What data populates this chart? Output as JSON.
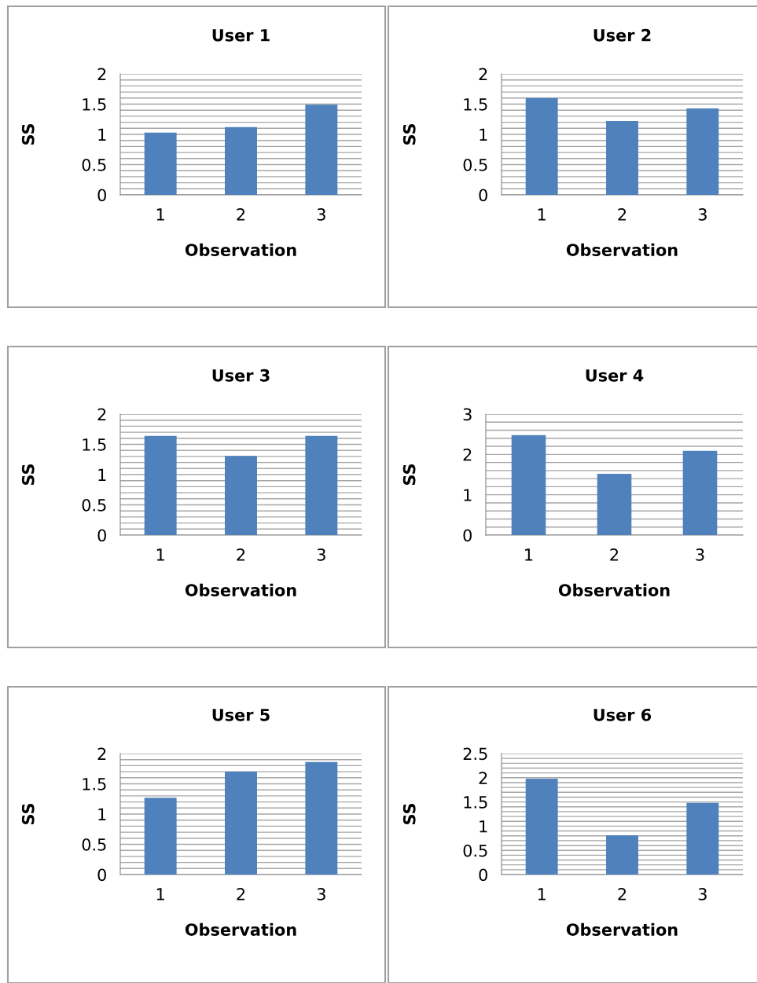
{
  "chart_data": [
    {
      "type": "bar",
      "title": "User 1",
      "xlabel": "Observation",
      "ylabel": "SS",
      "categories": [
        "1",
        "2",
        "3"
      ],
      "values": [
        1.03,
        1.12,
        1.49
      ],
      "color": "#4f81bd",
      "ylim": [
        0,
        2
      ],
      "yticks": [
        0,
        0.5,
        1,
        1.5,
        2
      ],
      "grid": "y"
    },
    {
      "type": "bar",
      "title": "User 2",
      "xlabel": "Observation",
      "ylabel": "SS",
      "categories": [
        "1",
        "2",
        "3"
      ],
      "values": [
        1.6,
        1.22,
        1.43
      ],
      "color": "#4f81bd",
      "ylim": [
        0,
        2
      ],
      "yticks": [
        0,
        0.5,
        1,
        1.5,
        2
      ],
      "grid": "y"
    },
    {
      "type": "bar",
      "title": "User 3",
      "xlabel": "Observation",
      "ylabel": "SS",
      "categories": [
        "1",
        "2",
        "3"
      ],
      "values": [
        1.64,
        1.31,
        1.64
      ],
      "color": "#4f81bd",
      "ylim": [
        0,
        2
      ],
      "yticks": [
        0,
        0.5,
        1,
        1.5,
        2
      ],
      "grid": "y"
    },
    {
      "type": "bar",
      "title": "User 4",
      "xlabel": "Observation",
      "ylabel": "SS",
      "categories": [
        "1",
        "2",
        "3"
      ],
      "values": [
        2.48,
        1.52,
        2.09
      ],
      "color": "#4f81bd",
      "ylim": [
        0,
        3
      ],
      "yticks": [
        0,
        1,
        2,
        3
      ],
      "grid": "y"
    },
    {
      "type": "bar",
      "title": "User 5",
      "xlabel": "Observation",
      "ylabel": "SS",
      "categories": [
        "1",
        "2",
        "3"
      ],
      "values": [
        1.27,
        1.7,
        1.86
      ],
      "color": "#4f81bd",
      "ylim": [
        0,
        2
      ],
      "yticks": [
        0,
        0.5,
        1,
        1.5,
        2
      ],
      "grid": "y"
    },
    {
      "type": "bar",
      "title": "User 6",
      "xlabel": "Observation",
      "ylabel": "SS",
      "categories": [
        "1",
        "2",
        "3"
      ],
      "values": [
        1.98,
        0.81,
        1.48
      ],
      "color": "#4f81bd",
      "ylim": [
        0,
        2.5
      ],
      "yticks": [
        0,
        0.5,
        1,
        1.5,
        2,
        2.5
      ],
      "grid": "y"
    }
  ]
}
